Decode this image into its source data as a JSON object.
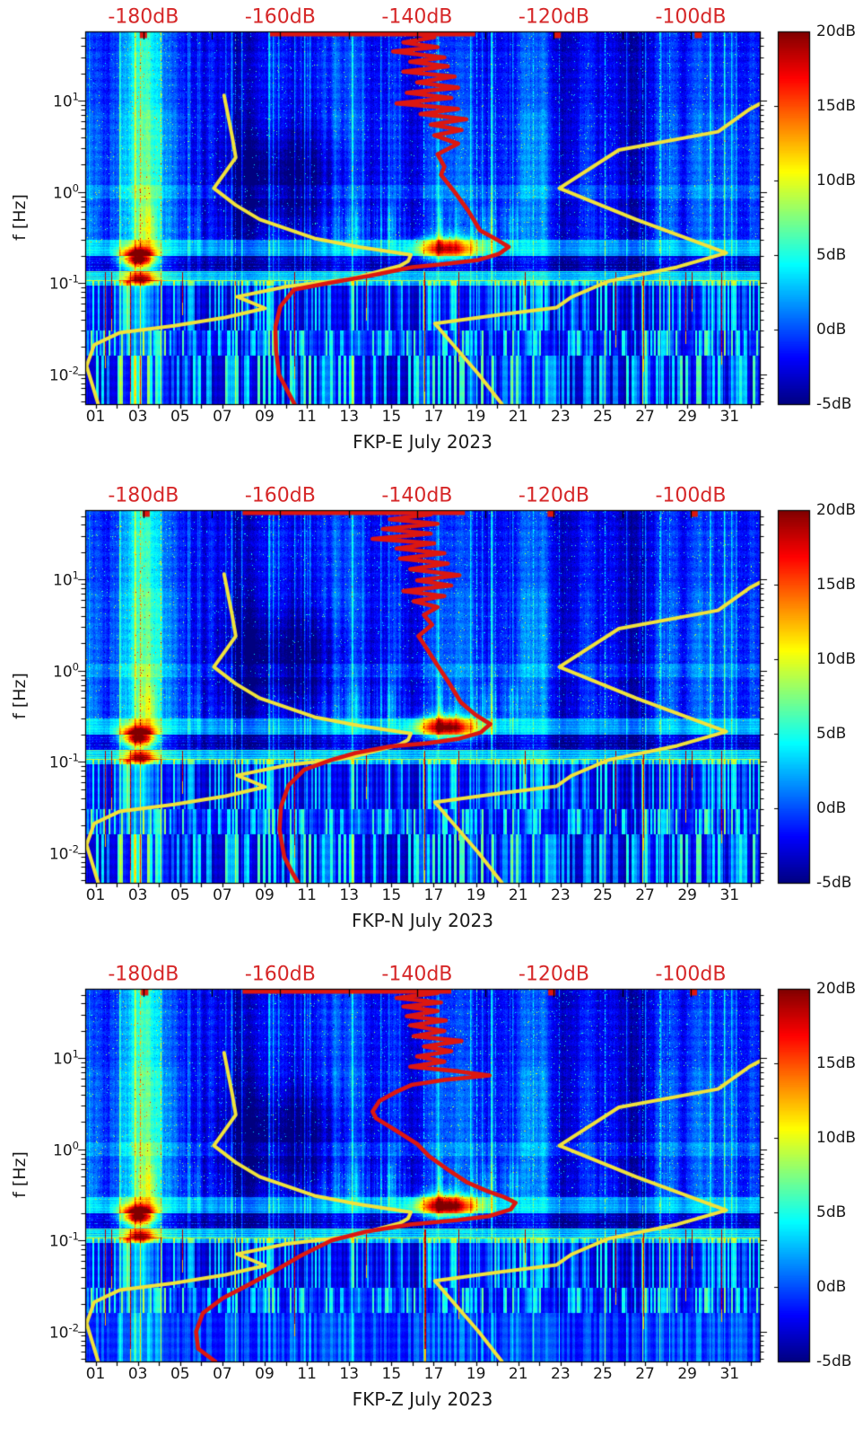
{
  "chart_data": {
    "type": "heatmap",
    "subtype": "spectrogram",
    "description": "Three stacked probabilistic power spectral density spectrograms (log frequency vs day of month, jet colormap) with a red station median PSD curve and yellow low/high noise model reference curves drawn against a secondary dB axis along the top of each panel.",
    "colormap": "jet",
    "clim_db": [
      -5,
      20
    ],
    "x_axis": {
      "tick_labels": [
        "01",
        "03",
        "05",
        "07",
        "09",
        "11",
        "13",
        "15",
        "17",
        "19",
        "21",
        "23",
        "25",
        "27",
        "29",
        "31"
      ],
      "tick_days": [
        1,
        3,
        5,
        7,
        9,
        11,
        13,
        15,
        17,
        19,
        21,
        23,
        25,
        27,
        29,
        31
      ],
      "minor_tick_step_days": 1,
      "range_days": [
        0.51,
        32.43
      ]
    },
    "y_axis": {
      "label": "f [Hz]",
      "scale": "log",
      "tick_labels": [
        "10^1",
        "10^0",
        "10^-1",
        "10^-2"
      ],
      "tick_values": [
        10,
        1,
        0.1,
        0.01
      ],
      "minor_ticks": "log mantissas 2-9 per decade",
      "range_hz": [
        0.0047,
        58
      ]
    },
    "top_axis": {
      "tick_labels": [
        "-180dB",
        "-160dB",
        "-140dB",
        "-120dB",
        "-100dB"
      ],
      "tick_values": [
        -180,
        -160,
        -140,
        -120,
        -100
      ],
      "minor_tick_step_db": 10,
      "range_db": [
        -188.5,
        -89.9
      ],
      "label_color": "#d62728"
    },
    "colorbar": {
      "tick_labels": [
        "20dB",
        "15dB",
        "10dB",
        "5dB",
        "0dB",
        "-5dB"
      ],
      "tick_values": [
        20,
        15,
        10,
        5,
        0,
        -5
      ],
      "min": -5,
      "max": 20
    },
    "style": {
      "psd_color": "#dc1710",
      "model_color": "#f0e23c",
      "tick_color": "#000000",
      "text_color": "#1a1a1a"
    },
    "model_curves": {
      "low_noise_db_hz": [
        [
          -168.2,
          11.5
        ],
        [
          -167,
          4
        ],
        [
          -166.5,
          2.4
        ],
        [
          -169.7,
          1.1
        ],
        [
          -166.5,
          0.72
        ],
        [
          -163,
          0.5
        ],
        [
          -155,
          0.31
        ],
        [
          -148.5,
          0.25
        ],
        [
          -140.9,
          0.205
        ],
        [
          -141.3,
          0.175
        ],
        [
          -142.5,
          0.155
        ],
        [
          -150,
          0.11
        ],
        [
          -159,
          0.092
        ],
        [
          -166.3,
          0.071
        ],
        [
          -162.2,
          0.053
        ],
        [
          -168,
          0.042
        ],
        [
          -175.5,
          0.034
        ],
        [
          -183.5,
          0.0285
        ],
        [
          -187.2,
          0.021
        ],
        [
          -188.3,
          0.0123
        ],
        [
          -186.6,
          0.0047
        ]
      ],
      "high_noise_db_hz": [
        [
          -89.9,
          9.3
        ],
        [
          -91.3,
          8.2
        ],
        [
          -96,
          4.6
        ],
        [
          -110.5,
          2.9
        ],
        [
          -119.2,
          1.1
        ],
        [
          -108,
          0.5
        ],
        [
          -94.8,
          0.215
        ],
        [
          -102,
          0.15
        ],
        [
          -112,
          0.105
        ],
        [
          -117.5,
          0.07
        ],
        [
          -119.6,
          0.054
        ],
        [
          -128,
          0.045
        ],
        [
          -137.4,
          0.036
        ],
        [
          -131,
          0.01
        ],
        [
          -127.6,
          0.0047
        ]
      ]
    },
    "subplots": [
      {
        "title": "FKP-E July 2023",
        "seed": 11,
        "blob2_amp": 15,
        "bottom_variant": "stripes",
        "top_edge_segments_db": [
          [
            -161.5,
            -131.5
          ]
        ],
        "top_edge_squares_db": [
          -180,
          -119.5,
          -98.9
        ],
        "psd_db_hz": [
          [
            -141.5,
            58
          ],
          [
            -137.5,
            50
          ],
          [
            -142,
            44
          ],
          [
            -137,
            39
          ],
          [
            -143.5,
            35
          ],
          [
            -136,
            30
          ],
          [
            -141,
            27
          ],
          [
            -135.5,
            24
          ],
          [
            -142,
            21
          ],
          [
            -134.5,
            18.5
          ],
          [
            -140,
            16
          ],
          [
            -134,
            14
          ],
          [
            -141.5,
            12.3
          ],
          [
            -135,
            10.8
          ],
          [
            -143,
            9.4
          ],
          [
            -134,
            8.2
          ],
          [
            -139.5,
            7.2
          ],
          [
            -132.8,
            6.3
          ],
          [
            -138,
            5.5
          ],
          [
            -133.5,
            4.8
          ],
          [
            -137.5,
            4.2
          ],
          [
            -134,
            3.4
          ],
          [
            -137,
            2.6
          ],
          [
            -136,
            1.9
          ],
          [
            -136.5,
            1.55
          ],
          [
            -134.5,
            1.0
          ],
          [
            -132.5,
            0.62
          ],
          [
            -130.8,
            0.38
          ],
          [
            -128.3,
            0.3
          ],
          [
            -126.6,
            0.25
          ],
          [
            -128,
            0.21
          ],
          [
            -131,
            0.18
          ],
          [
            -136,
            0.162
          ],
          [
            -140.7,
            0.15
          ],
          [
            -147,
            0.12
          ],
          [
            -153,
            0.1
          ],
          [
            -158,
            0.085
          ],
          [
            -160,
            0.055
          ],
          [
            -160.7,
            0.033
          ],
          [
            -160.6,
            0.018
          ],
          [
            -160.2,
            0.01
          ],
          [
            -158.9,
            0.0065
          ],
          [
            -157.9,
            0.0047
          ]
        ]
      },
      {
        "title": "FKP-N July 2023",
        "seed": 22,
        "blob2_amp": 17,
        "bottom_variant": "stripes",
        "top_edge_segments_db": [
          [
            -165.5,
            -133
          ]
        ],
        "top_edge_squares_db": [
          -179.6,
          -120.4,
          -99.5
        ],
        "psd_db_hz": [
          [
            -141,
            58
          ],
          [
            -138,
            52
          ],
          [
            -144,
            46
          ],
          [
            -137,
            41
          ],
          [
            -145,
            36
          ],
          [
            -138,
            32
          ],
          [
            -146.5,
            28
          ],
          [
            -137.5,
            25
          ],
          [
            -143,
            22
          ],
          [
            -136,
            19.5
          ],
          [
            -142.5,
            17
          ],
          [
            -135.5,
            15
          ],
          [
            -141,
            13
          ],
          [
            -133.8,
            11.2
          ],
          [
            -140,
            9.8
          ],
          [
            -135,
            8.6
          ],
          [
            -142,
            7.5
          ],
          [
            -136,
            6.6
          ],
          [
            -140.5,
            5.8
          ],
          [
            -137,
            5
          ],
          [
            -139,
            4.1
          ],
          [
            -137.8,
            3.2
          ],
          [
            -139.8,
            2.4
          ],
          [
            -138.9,
            1.9
          ],
          [
            -137.2,
            1.2
          ],
          [
            -135.4,
            0.75
          ],
          [
            -133.6,
            0.45
          ],
          [
            -131.5,
            0.33
          ],
          [
            -129.3,
            0.26
          ],
          [
            -130.7,
            0.21
          ],
          [
            -133.8,
            0.18
          ],
          [
            -138.5,
            0.16
          ],
          [
            -144,
            0.147
          ],
          [
            -149,
            0.125
          ],
          [
            -152.5,
            0.105
          ],
          [
            -156.5,
            0.082
          ],
          [
            -158.8,
            0.055
          ],
          [
            -159.9,
            0.032
          ],
          [
            -160.1,
            0.018
          ],
          [
            -159.4,
            0.009
          ],
          [
            -158.2,
            0.006
          ],
          [
            -157.4,
            0.0047
          ]
        ]
      },
      {
        "title": "FKP-Z July 2023",
        "seed": 33,
        "blob2_amp": 18,
        "bottom_variant": "flat",
        "top_edge_segments_db": [
          [
            -165.5,
            -135
          ]
        ],
        "top_edge_squares_db": [
          -179.8,
          -120.3,
          -99.6
        ],
        "psd_db_hz": [
          [
            -140.5,
            58
          ],
          [
            -137,
            52
          ],
          [
            -143,
            46
          ],
          [
            -136.5,
            41
          ],
          [
            -142,
            37
          ],
          [
            -137,
            33
          ],
          [
            -141.5,
            29
          ],
          [
            -135.8,
            26
          ],
          [
            -141,
            23
          ],
          [
            -136,
            20
          ],
          [
            -140.5,
            17.5
          ],
          [
            -133.5,
            15.5
          ],
          [
            -139,
            13.5
          ],
          [
            -135,
            12
          ],
          [
            -140,
            10.5
          ],
          [
            -136,
            9.2
          ],
          [
            -141,
            8.1
          ],
          [
            -134,
            7.2
          ],
          [
            -129.4,
            6.5
          ],
          [
            -136,
            5.8
          ],
          [
            -140.8,
            5.1
          ],
          [
            -143,
            4.3
          ],
          [
            -145.5,
            3.4
          ],
          [
            -146.5,
            2.6
          ],
          [
            -146,
            2.2
          ],
          [
            -143,
            1.6
          ],
          [
            -140,
            1.15
          ],
          [
            -138.3,
            0.85
          ],
          [
            -135.5,
            0.6
          ],
          [
            -132.8,
            0.44
          ],
          [
            -129.8,
            0.35
          ],
          [
            -127.3,
            0.3
          ],
          [
            -125.6,
            0.26
          ],
          [
            -126.3,
            0.22
          ],
          [
            -129.5,
            0.185
          ],
          [
            -134,
            0.168
          ],
          [
            -141,
            0.15
          ],
          [
            -147.5,
            0.125
          ],
          [
            -152.5,
            0.1
          ],
          [
            -157,
            0.068
          ],
          [
            -160.5,
            0.048
          ],
          [
            -164.5,
            0.033
          ],
          [
            -168.5,
            0.023
          ],
          [
            -171.3,
            0.016
          ],
          [
            -172.3,
            0.01
          ],
          [
            -172,
            0.0065
          ],
          [
            -169.5,
            0.0047
          ]
        ]
      }
    ],
    "heatmap_features": {
      "primary_microseism_blob": {
        "day": 3.0,
        "freq_hz": 0.185,
        "peak_db": 20,
        "day_sigma": 0.55,
        "logf_sigma": 0.075
      },
      "secondary_microseism_blob": {
        "day": 17.6,
        "freq_hz": 0.24,
        "peak_db": 16,
        "day_sigma": 1.0,
        "logf_sigma": 0.085
      },
      "low_band_orange_streak": {
        "day": 3.1,
        "freq_hz": 0.112,
        "peak_db": 13
      },
      "quiet_patch": {
        "day_range": [
          8,
          12.5
        ],
        "freq_hz_range": [
          0.3,
          6
        ]
      },
      "bright_column_day": 3.05,
      "dark_band_hz": [
        0.135,
        0.2
      ],
      "bright_band_hz": [
        0.095,
        0.135
      ],
      "stripe_band_edges_hz": [
        0.105,
        0.03,
        0.016
      ],
      "red_spikes_day_bottomhz": [
        [
          1.45,
          0.012
        ],
        [
          1.75,
          0.03
        ],
        [
          2.62,
          0.0047
        ],
        [
          5.1,
          0.045
        ],
        [
          10.42,
          0.009
        ],
        [
          13.8,
          0.04
        ],
        [
          16.55,
          0.0047
        ],
        [
          18.15,
          0.014
        ],
        [
          21.3,
          0.055
        ],
        [
          25.6,
          0.02
        ],
        [
          26.9,
          0.011
        ],
        [
          28.9,
          0.022
        ],
        [
          29.2,
          0.05
        ],
        [
          30.6,
          0.013
        ]
      ]
    }
  }
}
